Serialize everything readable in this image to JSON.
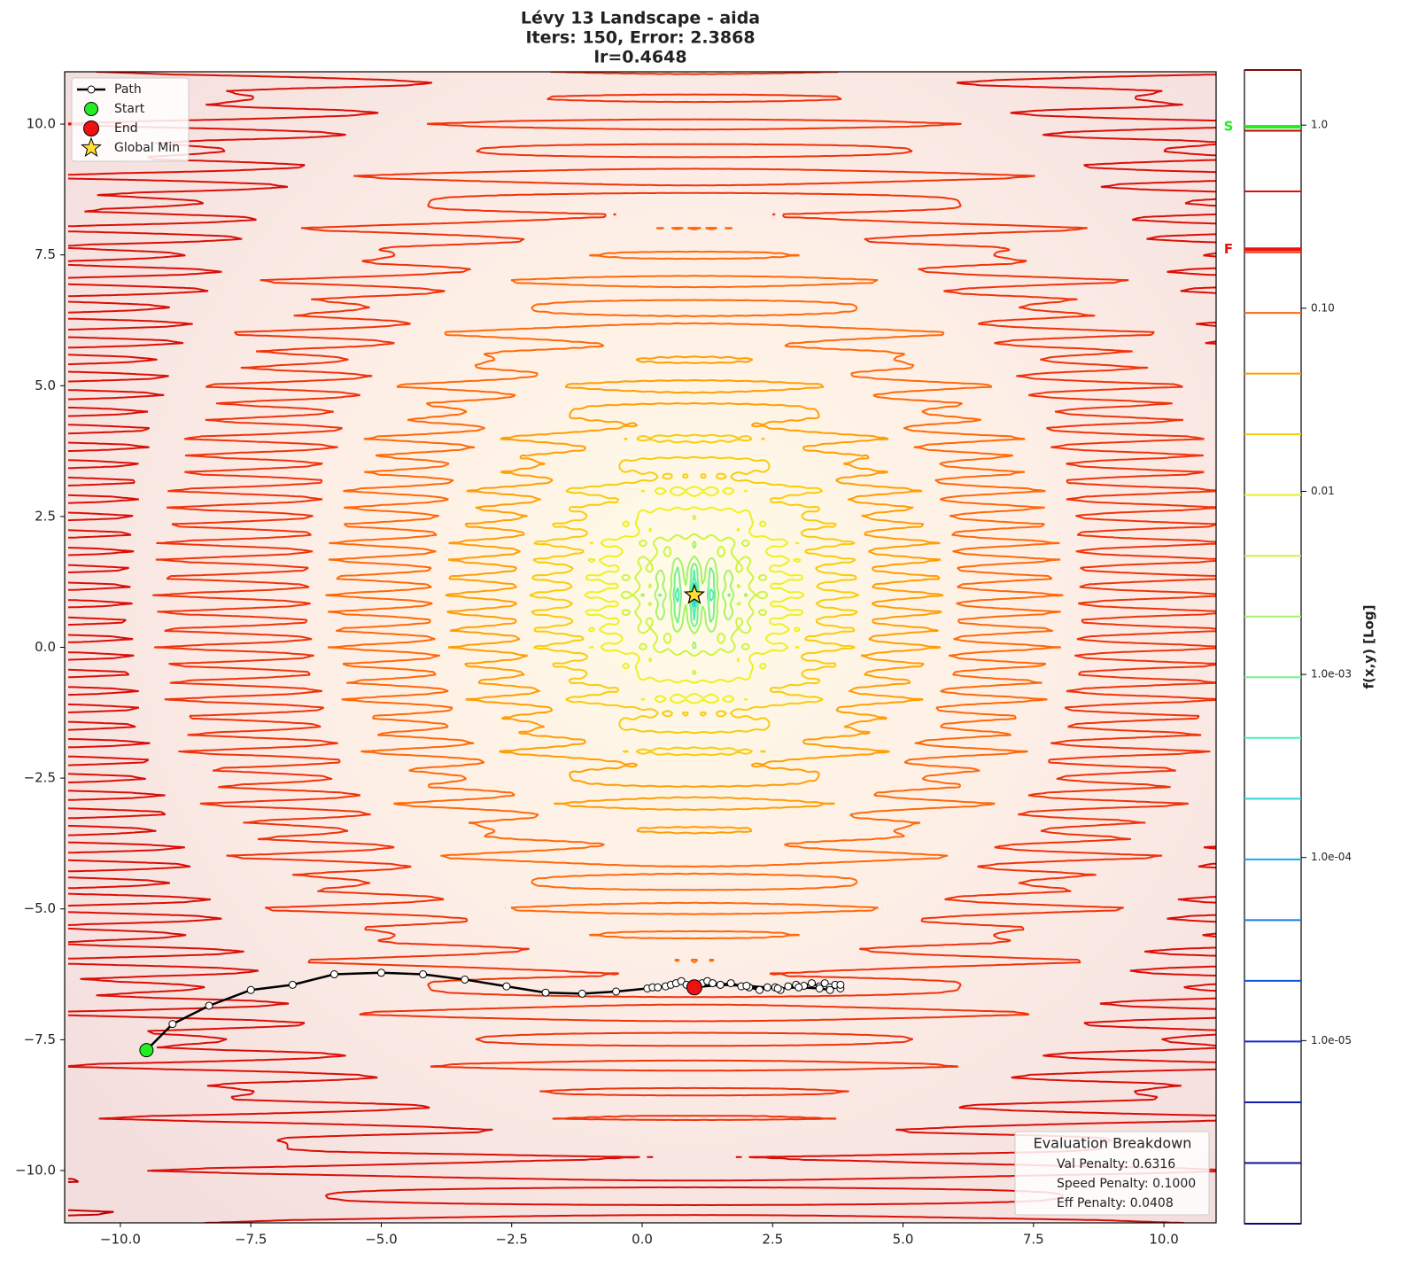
{
  "chart_data": {
    "type": "contour",
    "title": [
      "Lévy 13 Landscape - aida",
      "Iters: 150, Error: 2.3868",
      "lr=0.4648"
    ],
    "xlim": [
      -11,
      11
    ],
    "ylim": [
      -11,
      11
    ],
    "xticks": [
      {
        "value": -10,
        "label": "−10.0"
      },
      {
        "value": -7.5,
        "label": "−7.5"
      },
      {
        "value": -5,
        "label": "−5.0"
      },
      {
        "value": -2.5,
        "label": "−2.5"
      },
      {
        "value": 0,
        "label": "0.0"
      },
      {
        "value": 2.5,
        "label": "2.5"
      },
      {
        "value": 5,
        "label": "5.0"
      },
      {
        "value": 7.5,
        "label": "7.5"
      },
      {
        "value": 10,
        "label": "10.0"
      }
    ],
    "yticks": [
      {
        "value": -10,
        "label": "−10.0"
      },
      {
        "value": -7.5,
        "label": "−7.5"
      },
      {
        "value": -5,
        "label": "−5.0"
      },
      {
        "value": -2.5,
        "label": "−2.5"
      },
      {
        "value": 0,
        "label": "0.0"
      },
      {
        "value": 2.5,
        "label": "2.5"
      },
      {
        "value": 5,
        "label": "5.0"
      },
      {
        "value": 7.5,
        "label": "7.5"
      },
      {
        "value": 10,
        "label": "10.0"
      }
    ],
    "colorbar": {
      "label": "f(x,y) [Log]",
      "log": true,
      "lim": [
        1e-06,
        2
      ],
      "ticks": [
        {
          "value": 1,
          "label": "1.0"
        },
        {
          "value": 0.1,
          "label": "0.10"
        },
        {
          "value": 0.01,
          "label": "0.01"
        },
        {
          "value": 0.001,
          "label": "1.0e-03"
        },
        {
          "value": 0.0001,
          "label": "1.0e-04"
        },
        {
          "value": 1e-05,
          "label": "1.0e-05"
        }
      ],
      "markers": [
        {
          "label": "S",
          "value": 0.98,
          "color": "#22ee22"
        },
        {
          "label": "F",
          "value": 0.21,
          "color": "#ee1111"
        }
      ]
    },
    "path": {
      "name": "Path",
      "color": "#000000",
      "x": [
        -9.5,
        -9.0,
        -8.3,
        -7.5,
        -6.7,
        -5.9,
        -5.0,
        -4.2,
        -3.4,
        -2.6,
        -1.85,
        -1.15,
        -0.5,
        0.1,
        0.2,
        0.3,
        0.45,
        0.55,
        0.65,
        0.75,
        0.85,
        0.95,
        1.15,
        1.25,
        1.35,
        1.5,
        1.7,
        1.9,
        2.05,
        2.25,
        2.4,
        2.55,
        2.65,
        2.8,
        2.95,
        3.1,
        3.25,
        3.4,
        3.5,
        3.6,
        3.7,
        3.8,
        3.8,
        3.6,
        3.4,
        3.0,
        2.6,
        2.0,
        1.5,
        1.0
      ],
      "y": [
        -7.7,
        -7.2,
        -6.85,
        -6.55,
        -6.45,
        -6.25,
        -6.22,
        -6.25,
        -6.35,
        -6.48,
        -6.6,
        -6.62,
        -6.58,
        -6.52,
        -6.5,
        -6.5,
        -6.48,
        -6.45,
        -6.42,
        -6.38,
        -6.45,
        -6.48,
        -6.42,
        -6.38,
        -6.42,
        -6.45,
        -6.42,
        -6.48,
        -6.5,
        -6.55,
        -6.5,
        -6.5,
        -6.55,
        -6.48,
        -6.45,
        -6.47,
        -6.42,
        -6.48,
        -6.42,
        -6.5,
        -6.45,
        -6.52,
        -6.45,
        -6.55,
        -6.52,
        -6.5,
        -6.52,
        -6.47,
        -6.45,
        -6.5
      ]
    },
    "start": {
      "name": "Start",
      "x": -9.5,
      "y": -7.7,
      "color": "#22ee22"
    },
    "end": {
      "name": "End",
      "x": 1.0,
      "y": -6.5,
      "color": "#ee1111"
    },
    "global_min": {
      "name": "Global Min",
      "x": 1,
      "y": 1,
      "color": "#ffdd33"
    },
    "evaluation": {
      "title": "Evaluation Breakdown",
      "lines": [
        "Val Penalty: 0.6316",
        "Speed Penalty: 0.1000",
        "Eff Penalty: 0.0408"
      ]
    }
  }
}
